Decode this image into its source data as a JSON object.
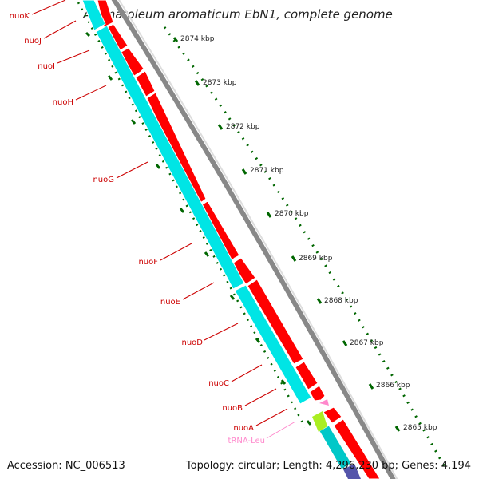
{
  "title": "Aromatoleum aromaticum EbN1, complete genome",
  "footer": {
    "accession": "Accession: NC_006513",
    "topology": "Topology: circular; Length: 4,296,230 bp; Genes: 4,194"
  },
  "kbp_labels": [
    "2874 kbp",
    "2873 kbp",
    "2872 kbp",
    "2871 kbp",
    "2870 kbp",
    "2869 kbp",
    "2868 kbp",
    "2867 kbp",
    "2866 kbp",
    "2865 kbp"
  ],
  "genes": {
    "nuoK": "nuoK",
    "nuoJ": "nuoJ",
    "nuoI": "nuoI",
    "nuoH": "nuoH",
    "nuoG": "nuoG",
    "nuoF": "nuoF",
    "nuoE": "nuoE",
    "nuoD": "nuoD",
    "nuoC": "nuoC",
    "nuoB": "nuoB",
    "nuoA": "nuoA",
    "trna": "tRNA-Leu"
  },
  "colors": {
    "forward_cds": "#ff0000",
    "reverse_cds": "#00e5e5",
    "trna": "#ff88cc",
    "other_feature": "#aaee22",
    "ticks": "#006600",
    "backbone": "#888888",
    "label_red": "#cc0000"
  }
}
